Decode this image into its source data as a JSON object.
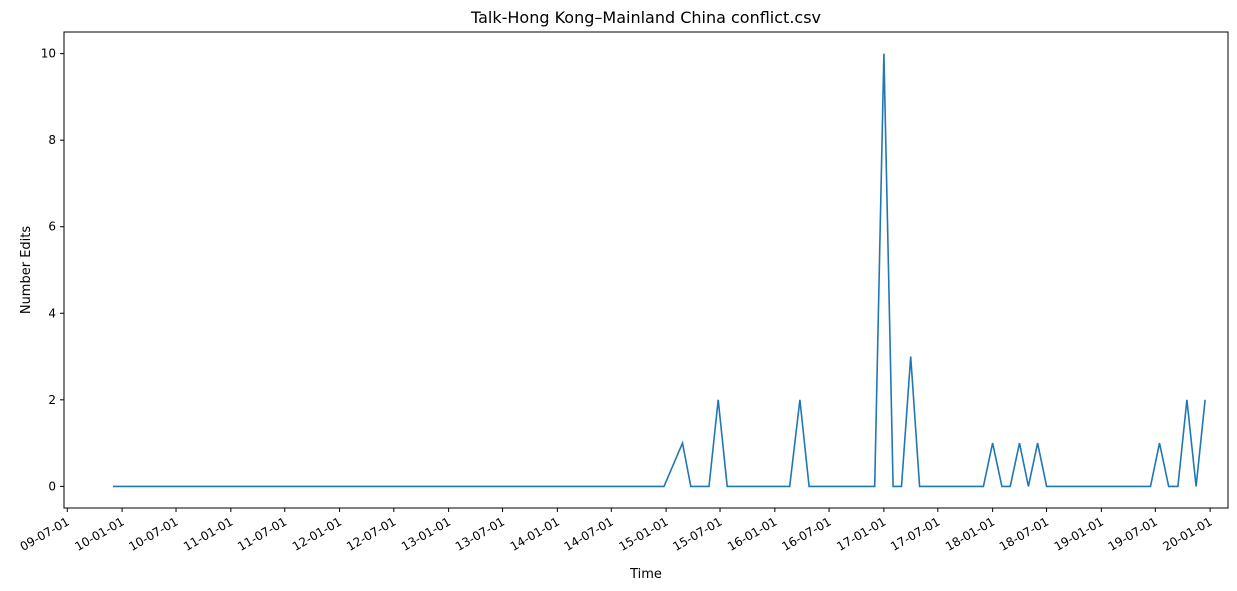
{
  "chart_data": {
    "type": "line",
    "title": "Talk-Hong Kong–Mainland China conflict.csv",
    "xlabel": "Time",
    "ylabel": "Number Edits",
    "ylim": [
      -0.5,
      10.5
    ],
    "yticks": [
      0,
      2,
      4,
      6,
      8,
      10
    ],
    "xlim": [
      "2009-06-20",
      "2020-03-01"
    ],
    "xticks": [
      {
        "date": "2009-07-01",
        "label": "09-07-01"
      },
      {
        "date": "2010-01-01",
        "label": "10-01-01"
      },
      {
        "date": "2010-07-01",
        "label": "10-07-01"
      },
      {
        "date": "2011-01-01",
        "label": "11-01-01"
      },
      {
        "date": "2011-07-01",
        "label": "11-07-01"
      },
      {
        "date": "2012-01-01",
        "label": "12-01-01"
      },
      {
        "date": "2012-07-01",
        "label": "12-07-01"
      },
      {
        "date": "2013-01-01",
        "label": "13-01-01"
      },
      {
        "date": "2013-07-01",
        "label": "13-07-01"
      },
      {
        "date": "2014-01-01",
        "label": "14-01-01"
      },
      {
        "date": "2014-07-01",
        "label": "14-07-01"
      },
      {
        "date": "2015-01-01",
        "label": "15-01-01"
      },
      {
        "date": "2015-07-01",
        "label": "15-07-01"
      },
      {
        "date": "2016-01-01",
        "label": "16-01-01"
      },
      {
        "date": "2016-07-01",
        "label": "16-07-01"
      },
      {
        "date": "2017-01-01",
        "label": "17-01-01"
      },
      {
        "date": "2017-07-01",
        "label": "17-07-01"
      },
      {
        "date": "2018-01-01",
        "label": "18-01-01"
      },
      {
        "date": "2018-07-01",
        "label": "18-07-01"
      },
      {
        "date": "2019-01-01",
        "label": "19-01-01"
      },
      {
        "date": "2019-07-01",
        "label": "19-07-01"
      },
      {
        "date": "2020-01-01",
        "label": "20-01-01"
      }
    ],
    "grid": false,
    "series": [
      {
        "color": "#1f77b4",
        "x": [
          "2009-12-01",
          "2014-12-25",
          "2015-02-25",
          "2015-03-25",
          "2015-04-25",
          "2015-05-25",
          "2015-06-25",
          "2015-07-25",
          "2016-02-20",
          "2016-03-25",
          "2016-04-25",
          "2016-12-01",
          "2017-01-01",
          "2017-02-01",
          "2017-03-01",
          "2017-04-01",
          "2017-05-01",
          "2017-12-01",
          "2018-01-01",
          "2018-02-01",
          "2018-03-01",
          "2018-04-01",
          "2018-05-01",
          "2018-06-01",
          "2018-07-01",
          "2019-06-15",
          "2019-07-15",
          "2019-08-15",
          "2019-09-15",
          "2019-10-15",
          "2019-11-15"
        ],
        "y": [
          0,
          0,
          1,
          0,
          0,
          0,
          2,
          0,
          0,
          2,
          0,
          0,
          10,
          0,
          0,
          3,
          0,
          0,
          1,
          0,
          0,
          1,
          0,
          1,
          0,
          0,
          1,
          0,
          0,
          2,
          0
        ]
      }
    ],
    "final_point": {
      "x": "2019-12-15",
      "y": 2
    }
  }
}
